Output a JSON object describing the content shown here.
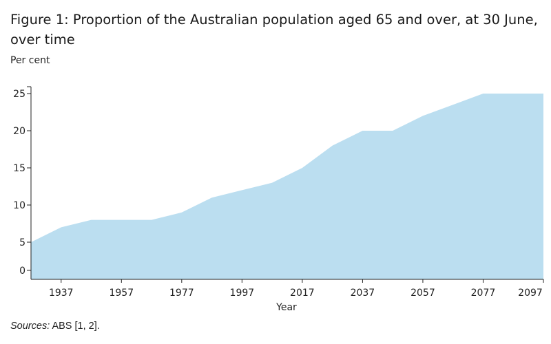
{
  "chart_data": {
    "type": "area",
    "title": "Figure 1: Proportion of the Australian population aged 65 and over, at 30 June, over time",
    "ylabel": "Per cent",
    "xlabel": "Year",
    "x": [
      1927,
      1937,
      1947,
      1957,
      1967,
      1977,
      1987,
      1997,
      2007,
      2017,
      2027,
      2037,
      2047,
      2057,
      2067,
      2077,
      2087,
      2097
    ],
    "values": [
      5,
      7,
      8,
      8,
      8,
      9,
      11,
      12,
      13,
      15,
      18,
      20,
      20,
      22,
      23.5,
      25,
      25,
      25
    ],
    "xlim": [
      1927,
      2097
    ],
    "ylim": [
      0,
      25
    ],
    "x_ticks": [
      1937,
      1957,
      1977,
      1997,
      2017,
      2037,
      2057,
      2077,
      2097
    ],
    "y_ticks": [
      0,
      5,
      10,
      15,
      20,
      25
    ],
    "grid": false,
    "colors": {
      "fill": "#bbdef0",
      "axis": "#222222"
    }
  },
  "sources": {
    "label": "Sources:",
    "text": " ABS [1, 2]."
  }
}
